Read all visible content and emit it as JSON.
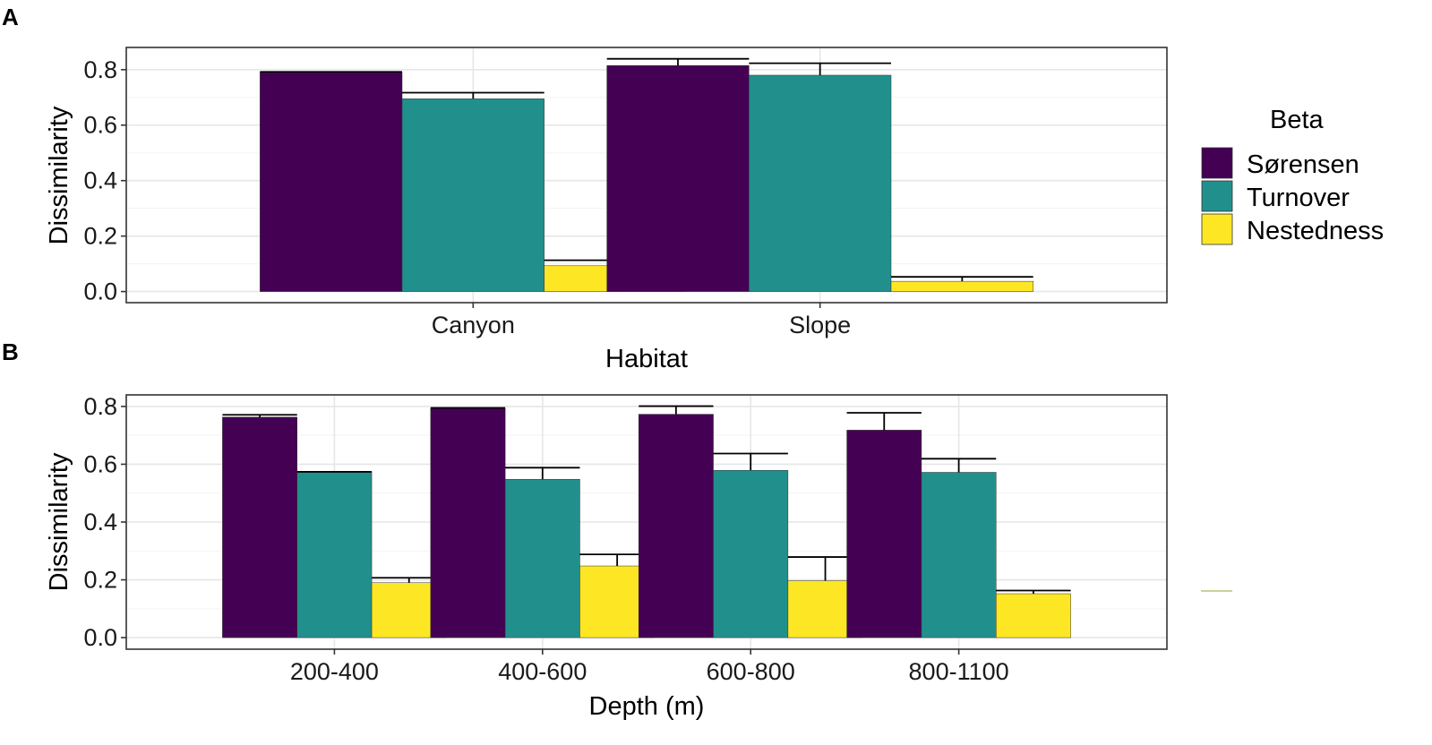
{
  "legend": {
    "title": "Beta",
    "entries": [
      {
        "label": "Sørensen",
        "color": "#440154"
      },
      {
        "label": "Turnover",
        "color": "#21908C"
      },
      {
        "label": "Nestedness",
        "color": "#FDE725"
      }
    ]
  },
  "chart_data": [
    {
      "panel": "A",
      "type": "bar",
      "xlabel": "Habitat",
      "ylabel": "Dissimilarity",
      "ylim": [
        -0.04,
        0.88
      ],
      "yticks": [
        0.0,
        0.2,
        0.4,
        0.6,
        0.8
      ],
      "ytick_labels": [
        "0.0",
        "0.2",
        "0.4",
        "0.6",
        "0.8"
      ],
      "categories": [
        "Canyon",
        "Slope"
      ],
      "series": [
        {
          "name": "Sørensen",
          "values": [
            0.79,
            0.815
          ],
          "errors": [
            0.002,
            0.024
          ]
        },
        {
          "name": "Turnover",
          "values": [
            0.695,
            0.78
          ],
          "errors": [
            0.022,
            0.043
          ]
        },
        {
          "name": "Nestedness",
          "values": [
            0.093,
            0.037
          ],
          "errors": [
            0.02,
            0.016
          ]
        }
      ]
    },
    {
      "panel": "B",
      "type": "bar",
      "xlabel": "Depth (m)",
      "ylabel": "Dissimilarity",
      "ylim": [
        -0.04,
        0.84
      ],
      "yticks": [
        0.0,
        0.2,
        0.4,
        0.6,
        0.8
      ],
      "ytick_labels": [
        "0.0",
        "0.2",
        "0.4",
        "0.6",
        "0.8"
      ],
      "categories": [
        "200-400",
        "400-600",
        "600-800",
        "800-1100"
      ],
      "series": [
        {
          "name": "Sørensen",
          "values": [
            0.763,
            0.793,
            0.773,
            0.718
          ],
          "errors": [
            0.008,
            0.002,
            0.028,
            0.06
          ]
        },
        {
          "name": "Turnover",
          "values": [
            0.572,
            0.548,
            0.579,
            0.572
          ],
          "errors": [
            0.002,
            0.04,
            0.058,
            0.047
          ]
        },
        {
          "name": "Nestedness",
          "values": [
            0.19,
            0.248,
            0.197,
            0.152
          ],
          "errors": [
            0.017,
            0.04,
            0.082,
            0.011
          ]
        }
      ]
    }
  ]
}
